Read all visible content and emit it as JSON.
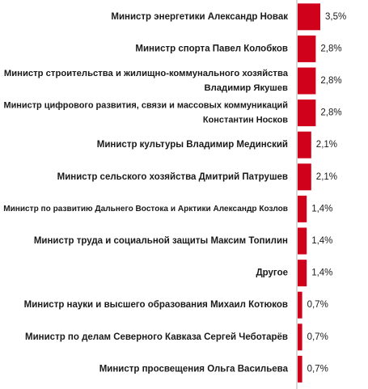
{
  "chart_data": {
    "type": "bar",
    "orientation": "horizontal",
    "categories": [
      [
        "Министр энергетики Александр Новак"
      ],
      [
        "Министр спорта Павел Колобков"
      ],
      [
        "Министр строительства и жилищно-коммунального хозяйства",
        "Владимир Якушев"
      ],
      [
        "Министр цифрового развития, связи и массовых коммуникаций",
        "Константин Носков"
      ],
      [
        "Министр культуры Владимир Мединский"
      ],
      [
        "Министр сельского хозяйства Дмитрий Патрушев"
      ],
      [
        "Министр по развитию Дальнего Востока и Арктики Александр Козлов"
      ],
      [
        "Министр труда и социальной защиты Максим Топилин"
      ],
      [
        "Другое"
      ],
      [
        "Министр науки и высшего образования Михаил Котюков"
      ],
      [
        "Министр по делам Северного Кавказа Сергей Чеботарёв"
      ],
      [
        "Министр просвещения Ольга Васильева"
      ]
    ],
    "values": [
      3.5,
      2.8,
      2.8,
      2.8,
      2.1,
      2.1,
      1.4,
      1.4,
      1.4,
      0.7,
      0.7,
      0.7
    ],
    "value_labels": [
      "3,5%",
      "2,8%",
      "2,8%",
      "2,8%",
      "2,1%",
      "2,1%",
      "1,4%",
      "1,4%",
      "1,4%",
      "0,7%",
      "0,7%",
      "0,7%"
    ],
    "bar_color": "#d0021b",
    "axis_line_color": "#b3b3b3",
    "title": "",
    "xlabel": "",
    "ylabel": "",
    "grid": false,
    "legend": "none"
  }
}
